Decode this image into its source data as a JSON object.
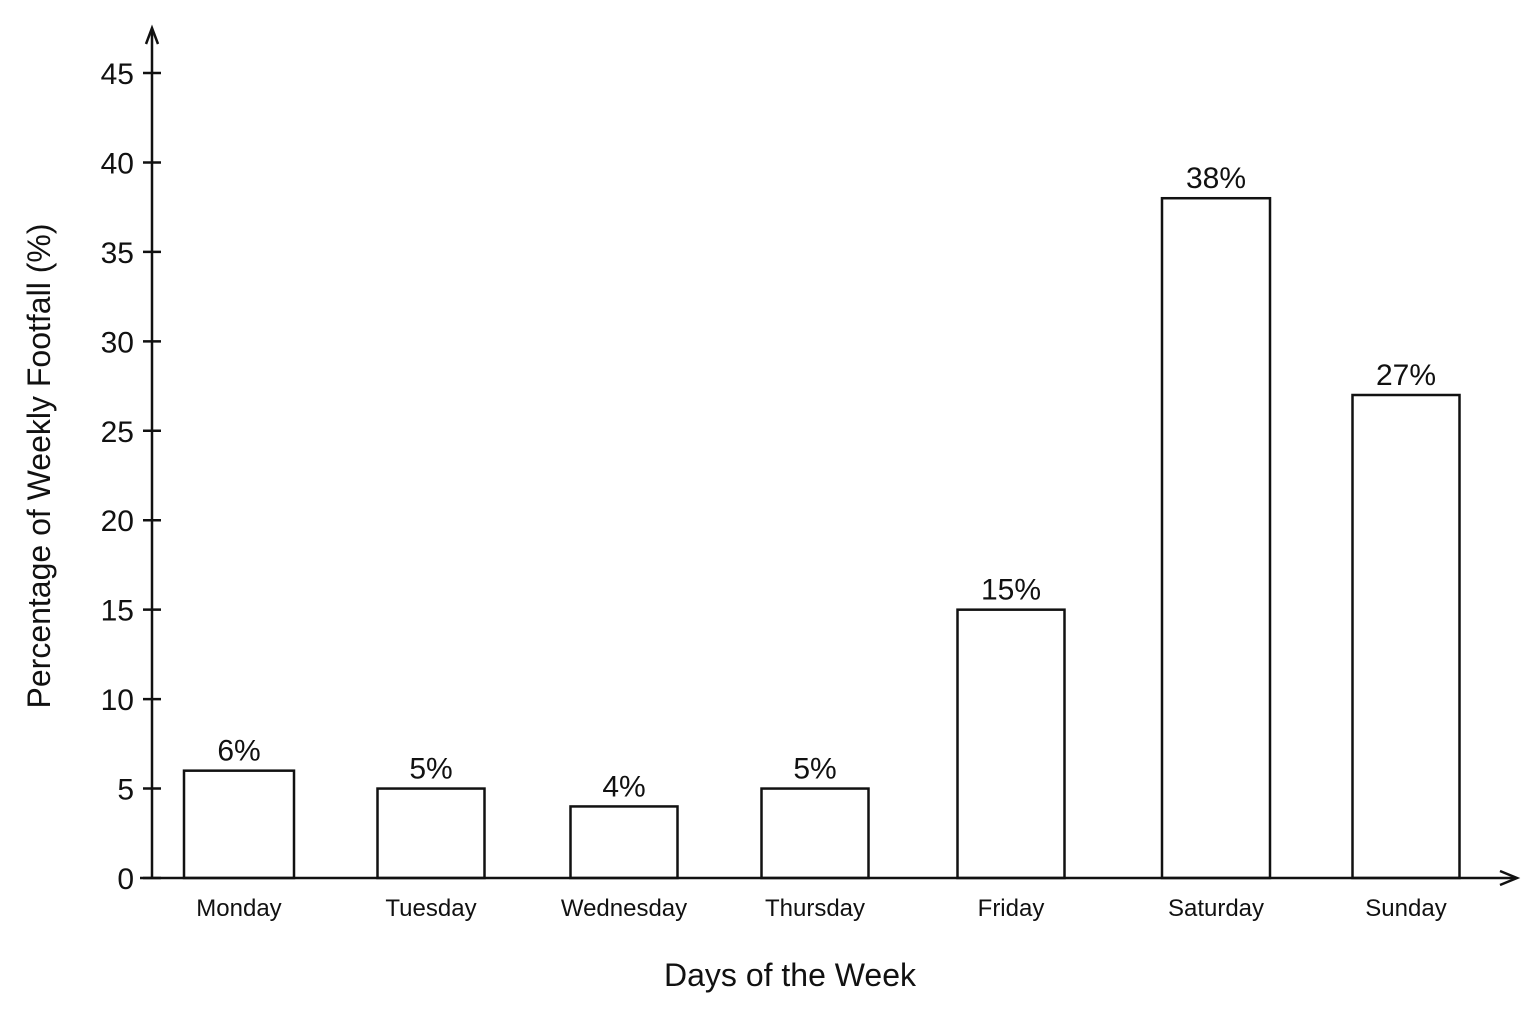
{
  "chart_data": {
    "type": "bar",
    "title": "",
    "xlabel": "Days of the Week",
    "ylabel": "Percentage of Weekly Footfall (%)",
    "ylim": [
      0,
      45
    ],
    "yticks": [
      0,
      5,
      10,
      15,
      20,
      25,
      30,
      35,
      40,
      45
    ],
    "categories": [
      "Monday",
      "Tuesday",
      "Wednesday",
      "Thursday",
      "Friday",
      "Saturday",
      "Sunday"
    ],
    "values": [
      6,
      5,
      4,
      5,
      15,
      38,
      27
    ],
    "data_labels": [
      "6%",
      "5%",
      "4%",
      "5%",
      "15%",
      "38%",
      "27%"
    ],
    "grid": false,
    "legend": "none",
    "bar_fill": "#ffffff",
    "bar_stroke": "#111111"
  }
}
